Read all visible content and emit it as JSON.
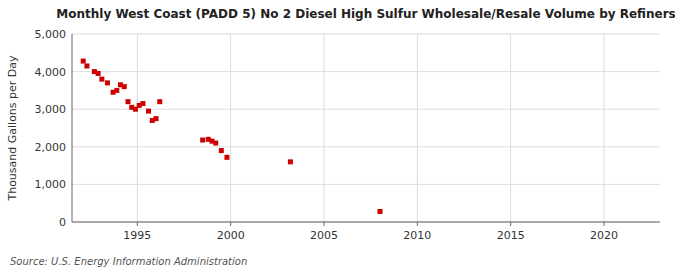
{
  "chart_data": {
    "type": "scatter",
    "title": "Monthly West Coast (PADD 5) No 2 Diesel High Sulfur Wholesale/Resale Volume by Refiners",
    "y_label": "Thousand Gallons per Day",
    "annotations": [
      "Source: U.S. Energy Information Administration"
    ],
    "color": "#cc0000",
    "marker": "square",
    "grid": true,
    "xlim": [
      1991.5,
      2023
    ],
    "ylim": [
      0,
      5000
    ],
    "xticks": [
      1995,
      2000,
      2005,
      2010,
      2015,
      2020
    ],
    "yticks": [
      0,
      {
        "value": 1000,
        "label": "1,000"
      },
      {
        "value": 2000,
        "label": "2,000"
      },
      {
        "value": 3000,
        "label": "3,000"
      },
      {
        "value": 4000,
        "label": "4,000"
      },
      {
        "value": 5000,
        "label": "5,000"
      }
    ],
    "x": [
      1992.1,
      1992.3,
      1992.7,
      1992.9,
      1993.1,
      1993.4,
      1993.7,
      1993.9,
      1994.1,
      1994.3,
      1994.5,
      1994.7,
      1994.9,
      1995.1,
      1995.3,
      1995.6,
      1995.8,
      1996.0,
      1996.2,
      1998.5,
      1998.8,
      1999.0,
      1999.2,
      1999.5,
      1999.8,
      2003.2,
      2008.0
    ],
    "values": [
      4280,
      4150,
      4000,
      3950,
      3800,
      3700,
      3450,
      3500,
      3650,
      3600,
      3200,
      3050,
      3000,
      3100,
      3150,
      2950,
      2700,
      2750,
      3200,
      2180,
      2200,
      2150,
      2100,
      1900,
      1720,
      1600,
      280
    ]
  }
}
